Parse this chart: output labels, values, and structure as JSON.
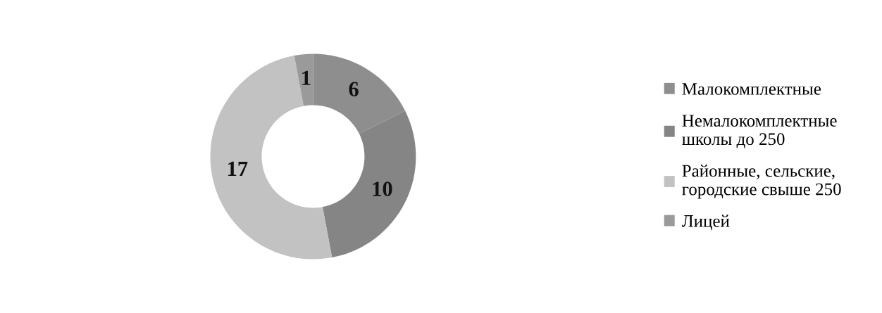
{
  "chart_data": {
    "type": "donut",
    "categories": [
      "Малокомплектные",
      "Немалокомплектные школы до 250",
      "Районные, сельские, городские свыше 250",
      "Лицей"
    ],
    "values": [
      6,
      10,
      17,
      1
    ],
    "colors": [
      "#8e8e8e",
      "#858585",
      "#c2c2c2",
      "#9a9a9a"
    ],
    "data_labels": true,
    "legend": "right"
  }
}
